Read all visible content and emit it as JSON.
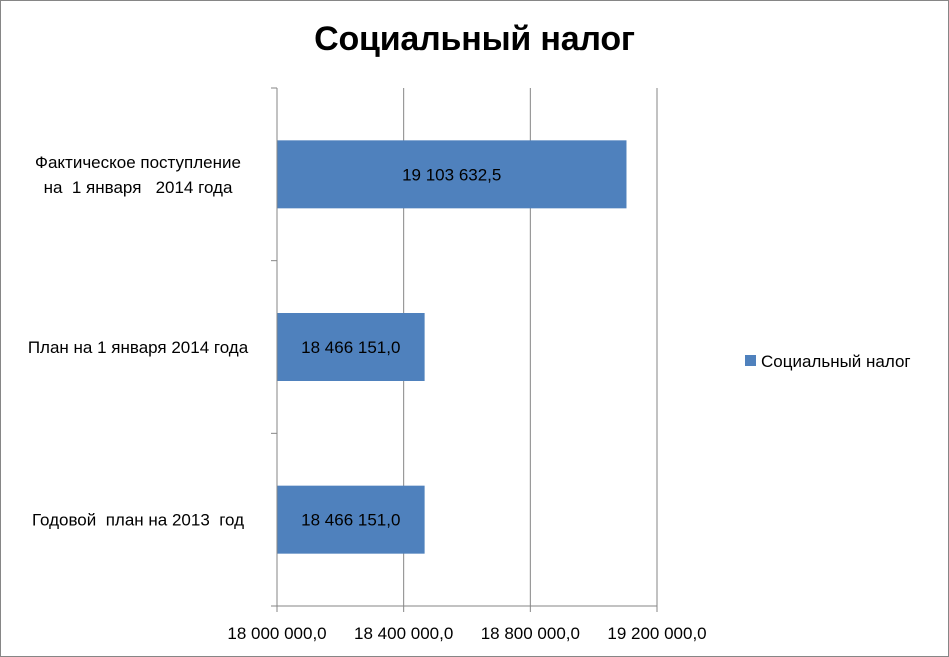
{
  "chart_data": {
    "type": "bar",
    "orientation": "horizontal",
    "title": "Социальный налог",
    "categories": [
      "Фактическое поступление на 1 января 2014 года",
      "План на 1 января 2014 года",
      "Годовой план на 2013 год"
    ],
    "category_label_lines": [
      [
        "Фактическое поступление",
        "на  1 января   2014 года"
      ],
      [
        "План на 1 января 2014 года"
      ],
      [
        "Годовой  план на 2013  год"
      ]
    ],
    "series": [
      {
        "name": "Социальный налог",
        "color": "#4f81bd",
        "values": [
          19103632.5,
          18466151.0,
          18466151.0
        ],
        "data_labels": [
          "19 103 632,5",
          "18 466 151,0",
          "18 466 151,0"
        ]
      }
    ],
    "xlim": [
      18000000,
      19200000
    ],
    "x_ticks": [
      18000000,
      18400000,
      18800000,
      19200000
    ],
    "x_tick_labels": [
      "18 000 000,0",
      "18 400 000,0",
      "18 800 000,0",
      "19 200 000,0"
    ],
    "grid": true,
    "legend_position": "right"
  }
}
